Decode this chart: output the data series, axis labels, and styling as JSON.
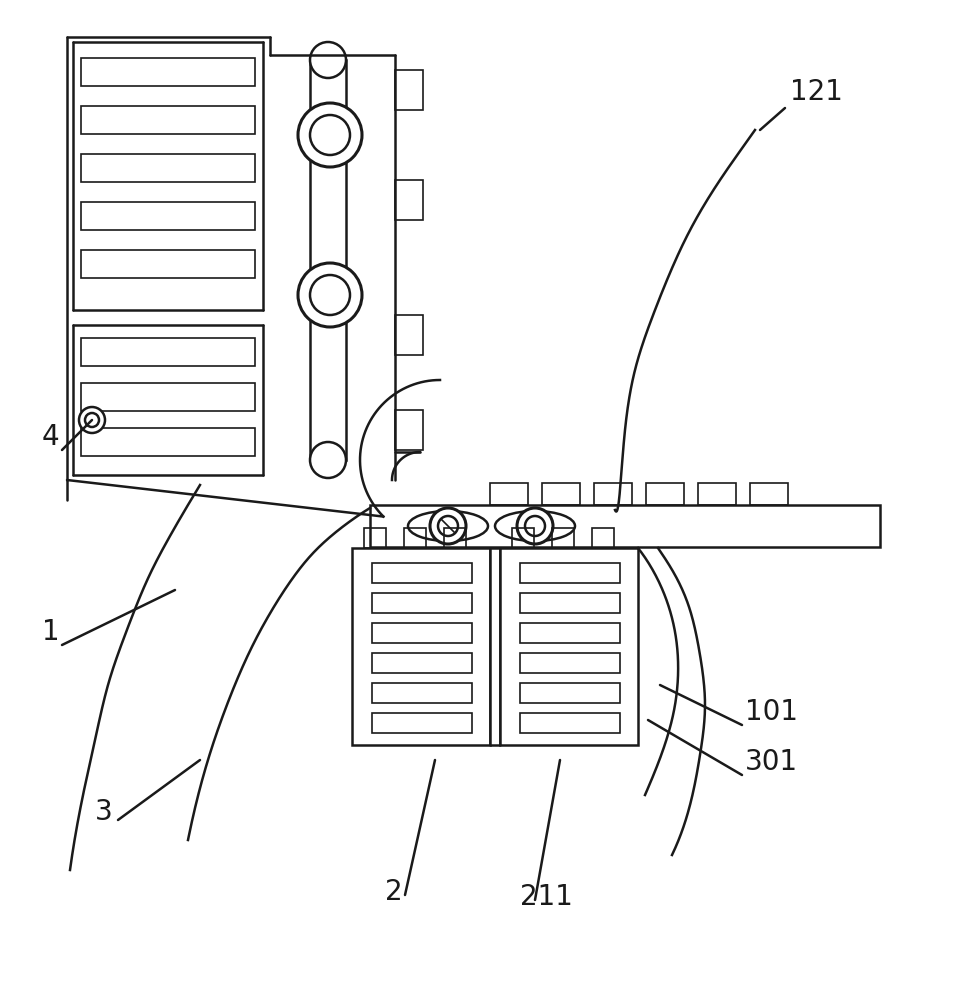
{
  "bg_color": "#ffffff",
  "line_color": "#1a1a1a",
  "lw": 1.8,
  "lw_thin": 1.2,
  "lw_thick": 2.2
}
